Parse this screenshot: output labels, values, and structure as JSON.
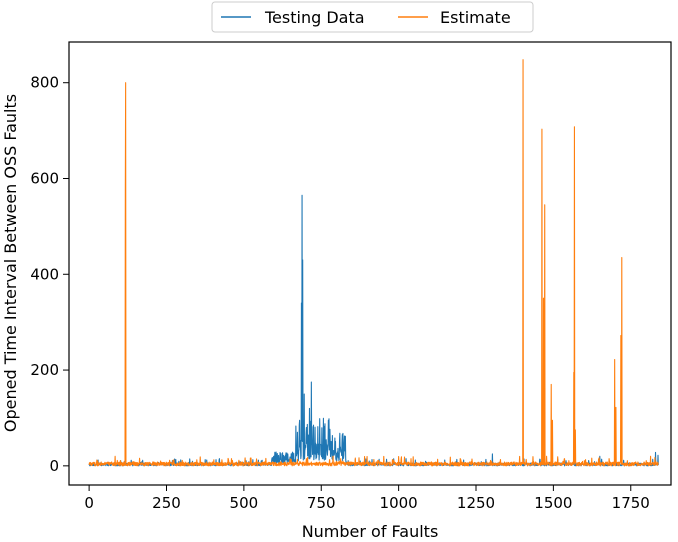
{
  "chart_data": {
    "type": "line",
    "xlabel": "Number of Faults",
    "ylabel": "Opened Time Interval Between OSS Faults",
    "xlim": [
      -65,
      1880
    ],
    "ylim": [
      -40,
      885
    ],
    "xticks": [
      0,
      250,
      500,
      750,
      1000,
      1250,
      1500,
      1750
    ],
    "yticks": [
      0,
      200,
      400,
      600,
      800
    ],
    "grid": false,
    "legend_position": "top-center",
    "n_points": 1840,
    "series": [
      {
        "name": "Testing Data",
        "color": "#1f77b4",
        "baseline": 3,
        "segments": [
          {
            "x_range": [
              590,
              668
            ],
            "range": [
              5,
              30
            ]
          },
          {
            "x_range": [
              668,
              780
            ],
            "range": [
              10,
              100
            ]
          },
          {
            "x_range": [
              780,
              830
            ],
            "range": [
              10,
              68
            ]
          }
        ],
        "peaks": [
          {
            "x": 680,
            "y": 95
          },
          {
            "x": 686,
            "y": 340
          },
          {
            "x": 688,
            "y": 565
          },
          {
            "x": 690,
            "y": 430
          },
          {
            "x": 695,
            "y": 150
          },
          {
            "x": 702,
            "y": 80
          },
          {
            "x": 712,
            "y": 120
          },
          {
            "x": 718,
            "y": 175
          },
          {
            "x": 725,
            "y": 85
          },
          {
            "x": 810,
            "y": 68
          },
          {
            "x": 818,
            "y": 65
          },
          {
            "x": 1303,
            "y": 25
          },
          {
            "x": 1650,
            "y": 20
          },
          {
            "x": 1830,
            "y": 28
          },
          {
            "x": 1838,
            "y": 22
          }
        ]
      },
      {
        "name": "Estimate",
        "color": "#ff7f0e",
        "baseline": 4,
        "peaks": [
          {
            "x": 117,
            "y": 575
          },
          {
            "x": 118,
            "y": 800
          },
          {
            "x": 460,
            "y": 15
          },
          {
            "x": 1040,
            "y": 15
          },
          {
            "x": 1402,
            "y": 848
          },
          {
            "x": 1463,
            "y": 703
          },
          {
            "x": 1468,
            "y": 350
          },
          {
            "x": 1472,
            "y": 545
          },
          {
            "x": 1493,
            "y": 170
          },
          {
            "x": 1497,
            "y": 95
          },
          {
            "x": 1566,
            "y": 195
          },
          {
            "x": 1568,
            "y": 708
          },
          {
            "x": 1571,
            "y": 75
          },
          {
            "x": 1698,
            "y": 222
          },
          {
            "x": 1702,
            "y": 122
          },
          {
            "x": 1718,
            "y": 272
          },
          {
            "x": 1721,
            "y": 435
          }
        ]
      }
    ]
  }
}
